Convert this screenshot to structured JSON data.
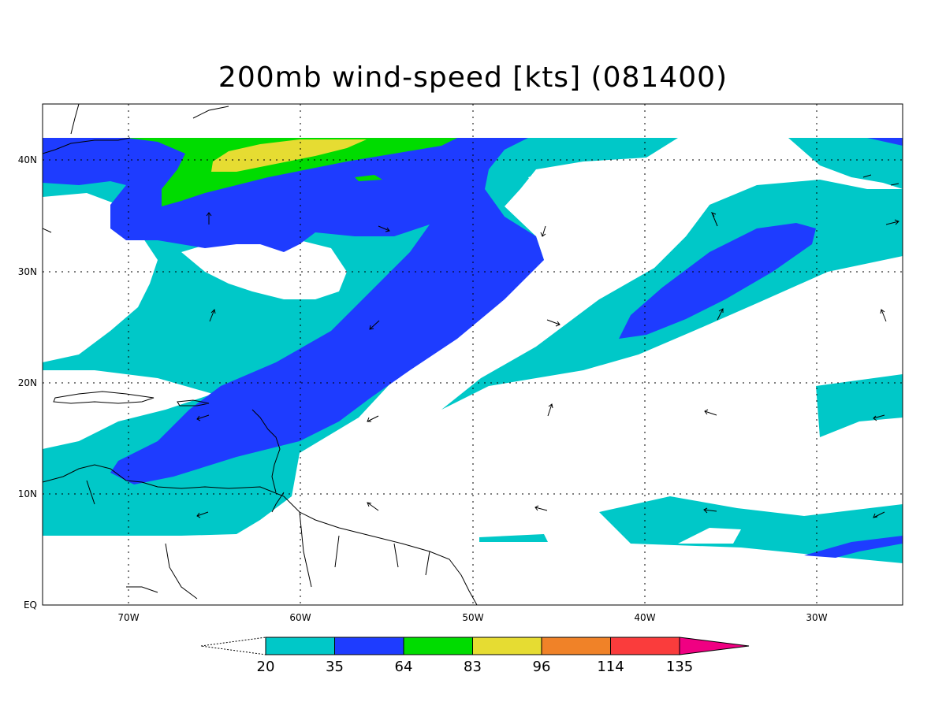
{
  "title": "200mb wind-speed [kts] (081400)",
  "lat_labels": [
    "40N",
    "30N",
    "20N",
    "10N",
    "EQ"
  ],
  "lon_labels": [
    "70W",
    "60W",
    "50W",
    "40W",
    "30W"
  ],
  "legend": {
    "thresholds": [
      "20",
      "35",
      "64",
      "83",
      "96",
      "114",
      "135"
    ],
    "colors": [
      "#00c8c8",
      "#1e3cff",
      "#00dc00",
      "#e6dc32",
      "#f08228",
      "#fa3c3c",
      "#f00082"
    ]
  },
  "map_extent": {
    "lon_min": -75,
    "lon_max": -25,
    "lat_min": 0,
    "lat_max": 45
  }
}
